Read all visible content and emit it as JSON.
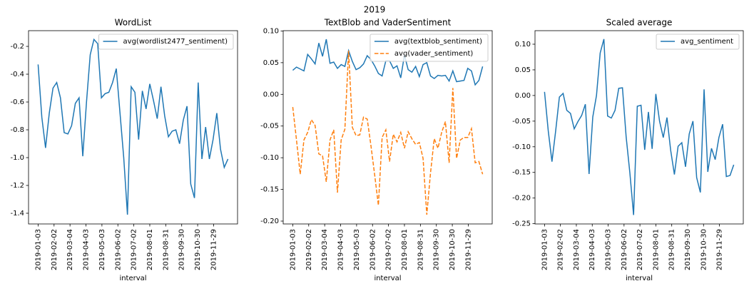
{
  "title": "2019",
  "chart_data": [
    {
      "type": "line",
      "title": "WordList",
      "xlabel": "interval",
      "x": [
        "2019-01-03",
        "2019-01-10",
        "2019-01-17",
        "2019-01-24",
        "2019-01-31",
        "2019-02-07",
        "2019-02-14",
        "2019-02-21",
        "2019-02-28",
        "2019-03-07",
        "2019-03-14",
        "2019-03-21",
        "2019-03-28",
        "2019-04-04",
        "2019-04-11",
        "2019-04-18",
        "2019-04-25",
        "2019-05-02",
        "2019-05-09",
        "2019-05-16",
        "2019-05-23",
        "2019-05-30",
        "2019-06-06",
        "2019-06-13",
        "2019-06-20",
        "2019-06-27",
        "2019-07-04",
        "2019-07-11",
        "2019-07-18",
        "2019-07-25",
        "2019-08-01",
        "2019-08-08",
        "2019-08-15",
        "2019-08-22",
        "2019-08-29",
        "2019-09-05",
        "2019-09-12",
        "2019-09-19",
        "2019-09-26",
        "2019-10-03",
        "2019-10-10",
        "2019-10-17",
        "2019-10-24",
        "2019-10-31",
        "2019-11-07",
        "2019-11-14",
        "2019-11-21",
        "2019-11-28",
        "2019-12-05",
        "2019-12-12",
        "2019-12-19",
        "2019-12-26"
      ],
      "xlim": [
        "2018-12-16",
        "2020-01-13"
      ],
      "xticks": [
        "2019-01-03",
        "2019-02-02",
        "2019-03-04",
        "2019-04-03",
        "2019-05-03",
        "2019-06-02",
        "2019-07-02",
        "2019-08-01",
        "2019-08-31",
        "2019-09-30",
        "2019-10-30",
        "2019-11-29"
      ],
      "ylim": [
        -1.477,
        -0.087
      ],
      "yticks": [
        {
          "value": -1.4,
          "label": "-1.4"
        },
        {
          "value": -1.2,
          "label": "-1.2"
        },
        {
          "value": -1,
          "label": "-1.0"
        },
        -0.8,
        -0.6,
        -0.4,
        -0.2
      ],
      "legend": "upper right",
      "series": [
        {
          "name": "avg(wordlist2477_sentiment)",
          "color": "#1f77b4",
          "linestyle": "solid",
          "values": [
            -0.33,
            -0.71,
            -0.93,
            -0.68,
            -0.5,
            -0.46,
            -0.57,
            -0.82,
            -0.83,
            -0.77,
            -0.61,
            -0.57,
            -0.99,
            -0.6,
            -0.26,
            -0.15,
            -0.18,
            -0.57,
            -0.54,
            -0.53,
            -0.46,
            -0.36,
            -0.68,
            -1.0,
            -1.41,
            -0.49,
            -0.53,
            -0.87,
            -0.52,
            -0.65,
            -0.47,
            -0.59,
            -0.72,
            -0.49,
            -0.7,
            -0.85,
            -0.81,
            -0.8,
            -0.9,
            -0.73,
            -0.63,
            -1.19,
            -1.29,
            -0.46,
            -1.01,
            -0.78,
            -1.01,
            -0.87,
            -0.68,
            -0.94,
            -1.07,
            -1.01
          ]
        }
      ]
    },
    {
      "type": "line",
      "title": "TextBlob and VaderSentiment",
      "xlabel": "interval",
      "x": [
        "2019-01-03",
        "2019-01-10",
        "2019-01-17",
        "2019-01-24",
        "2019-01-31",
        "2019-02-07",
        "2019-02-14",
        "2019-02-21",
        "2019-02-28",
        "2019-03-07",
        "2019-03-14",
        "2019-03-21",
        "2019-03-28",
        "2019-04-04",
        "2019-04-11",
        "2019-04-18",
        "2019-04-25",
        "2019-05-02",
        "2019-05-09",
        "2019-05-16",
        "2019-05-23",
        "2019-05-30",
        "2019-06-06",
        "2019-06-13",
        "2019-06-20",
        "2019-06-27",
        "2019-07-04",
        "2019-07-11",
        "2019-07-18",
        "2019-07-25",
        "2019-08-01",
        "2019-08-08",
        "2019-08-15",
        "2019-08-22",
        "2019-08-29",
        "2019-09-05",
        "2019-09-12",
        "2019-09-19",
        "2019-09-26",
        "2019-10-03",
        "2019-10-10",
        "2019-10-17",
        "2019-10-24",
        "2019-10-31",
        "2019-11-07",
        "2019-11-14",
        "2019-11-21",
        "2019-11-28",
        "2019-12-05",
        "2019-12-12",
        "2019-12-19",
        "2019-12-26"
      ],
      "xlim": [
        "2018-12-16",
        "2020-01-13"
      ],
      "xticks": [
        "2019-01-03",
        "2019-02-02",
        "2019-03-04",
        "2019-04-03",
        "2019-05-03",
        "2019-06-02",
        "2019-07-02",
        "2019-08-01",
        "2019-08-31",
        "2019-09-30",
        "2019-10-30",
        "2019-11-29"
      ],
      "ylim": [
        -0.2045,
        0.1005
      ],
      "yticks": [
        {
          "value": -0.2,
          "label": "-0.20"
        },
        -0.15,
        {
          "value": -0.1,
          "label": "-0.10"
        },
        -0.05,
        {
          "value": 0,
          "label": "0.00"
        },
        0.05,
        {
          "value": 0.1,
          "label": "0.10"
        }
      ],
      "legend": "upper right",
      "series": [
        {
          "name": "avg(textblob_sentiment)",
          "color": "#1f77b4",
          "linestyle": "solid",
          "values": [
            0.038,
            0.043,
            0.04,
            0.037,
            0.063,
            0.056,
            0.048,
            0.081,
            0.06,
            0.087,
            0.049,
            0.051,
            0.041,
            0.047,
            0.044,
            0.069,
            0.052,
            0.039,
            0.042,
            0.048,
            0.061,
            0.055,
            0.045,
            0.033,
            0.029,
            0.053,
            0.053,
            0.041,
            0.045,
            0.026,
            0.062,
            0.039,
            0.035,
            0.044,
            0.028,
            0.047,
            0.05,
            0.029,
            0.025,
            0.03,
            0.029,
            0.03,
            0.021,
            0.037,
            0.02,
            0.021,
            0.022,
            0.041,
            0.037,
            0.015,
            0.022,
            0.044
          ]
        },
        {
          "name": "avg(vader_sentiment)",
          "color": "#ff7f0e",
          "linestyle": "dashed",
          "values": [
            -0.02,
            -0.072,
            -0.126,
            -0.072,
            -0.06,
            -0.04,
            -0.049,
            -0.094,
            -0.097,
            -0.138,
            -0.072,
            -0.056,
            -0.155,
            -0.072,
            -0.055,
            0.069,
            -0.052,
            -0.065,
            -0.064,
            -0.036,
            -0.039,
            -0.081,
            -0.127,
            -0.175,
            -0.068,
            -0.056,
            -0.106,
            -0.063,
            -0.075,
            -0.06,
            -0.085,
            -0.059,
            -0.07,
            -0.079,
            -0.076,
            -0.101,
            -0.19,
            -0.124,
            -0.07,
            -0.085,
            -0.06,
            -0.043,
            -0.108,
            0.01,
            -0.101,
            -0.072,
            -0.068,
            -0.068,
            -0.054,
            -0.108,
            -0.106,
            -0.126
          ]
        }
      ]
    },
    {
      "type": "line",
      "title": "Scaled average",
      "xlabel": "interval",
      "x": [
        "2019-01-03",
        "2019-01-10",
        "2019-01-17",
        "2019-01-24",
        "2019-01-31",
        "2019-02-07",
        "2019-02-14",
        "2019-02-21",
        "2019-02-28",
        "2019-03-07",
        "2019-03-14",
        "2019-03-21",
        "2019-03-28",
        "2019-04-04",
        "2019-04-11",
        "2019-04-18",
        "2019-04-25",
        "2019-05-02",
        "2019-05-09",
        "2019-05-16",
        "2019-05-23",
        "2019-05-30",
        "2019-06-06",
        "2019-06-13",
        "2019-06-20",
        "2019-06-27",
        "2019-07-04",
        "2019-07-11",
        "2019-07-18",
        "2019-07-25",
        "2019-08-01",
        "2019-08-08",
        "2019-08-15",
        "2019-08-22",
        "2019-08-29",
        "2019-09-05",
        "2019-09-12",
        "2019-09-19",
        "2019-09-26",
        "2019-10-03",
        "2019-10-10",
        "2019-10-17",
        "2019-10-24",
        "2019-10-31",
        "2019-11-07",
        "2019-11-14",
        "2019-11-21",
        "2019-11-28",
        "2019-12-05",
        "2019-12-12",
        "2019-12-19",
        "2019-12-26"
      ],
      "xlim": [
        "2018-12-16",
        "2020-01-13"
      ],
      "xticks": [
        "2019-01-03",
        "2019-02-02",
        "2019-03-04",
        "2019-04-03",
        "2019-05-03",
        "2019-06-02",
        "2019-07-02",
        "2019-08-01",
        "2019-08-31",
        "2019-09-30",
        "2019-10-30",
        "2019-11-29"
      ],
      "ylim": [
        -0.2505,
        0.1264
      ],
      "yticks": [
        -0.25,
        {
          "value": -0.2,
          "label": "-0.20"
        },
        -0.15,
        {
          "value": -0.1,
          "label": "-0.10"
        },
        -0.05,
        {
          "value": 0,
          "label": "0.00"
        },
        0.05,
        {
          "value": 0.1,
          "label": "0.10"
        }
      ],
      "legend": "upper right",
      "series": [
        {
          "name": "avg_sentiment",
          "color": "#1f77b4",
          "linestyle": "solid",
          "values": [
            0.007,
            -0.069,
            -0.129,
            -0.069,
            -0.003,
            0.004,
            -0.029,
            -0.035,
            -0.065,
            -0.051,
            -0.039,
            -0.017,
            -0.153,
            -0.042,
            0.0,
            0.083,
            0.11,
            -0.04,
            -0.044,
            -0.029,
            0.014,
            0.015,
            -0.081,
            -0.151,
            -0.233,
            -0.021,
            -0.019,
            -0.106,
            -0.032,
            -0.104,
            0.003,
            -0.05,
            -0.082,
            -0.043,
            -0.107,
            -0.154,
            -0.099,
            -0.092,
            -0.139,
            -0.075,
            -0.05,
            -0.16,
            -0.189,
            0.012,
            -0.149,
            -0.103,
            -0.125,
            -0.082,
            -0.056,
            -0.158,
            -0.156,
            -0.135
          ]
        }
      ]
    }
  ]
}
